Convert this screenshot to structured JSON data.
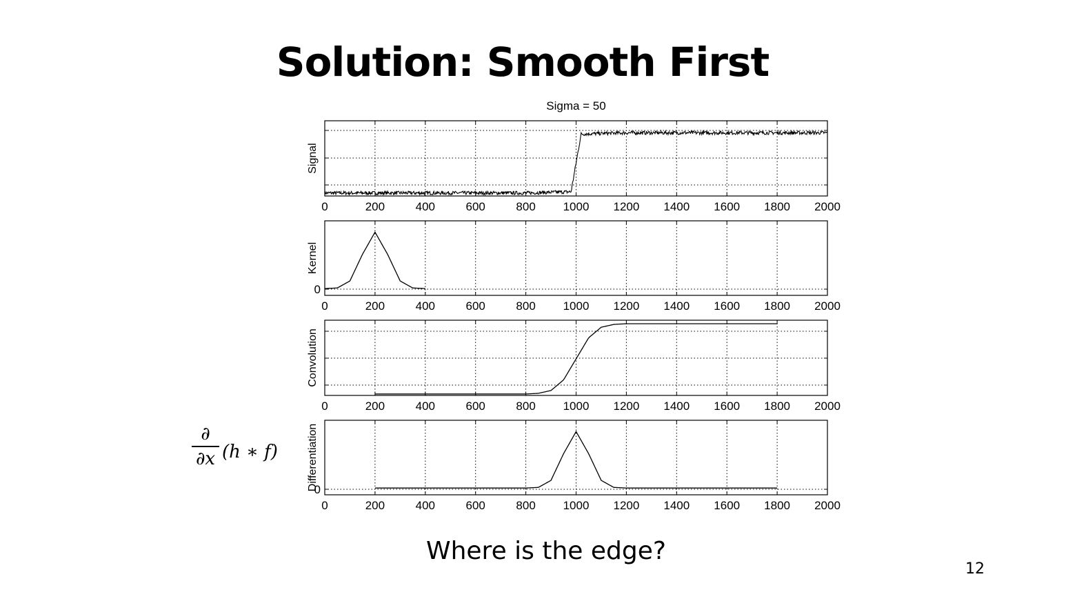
{
  "slide": {
    "title": "Solution:  Smooth First",
    "caption": "Where is the edge?",
    "page_number": "12",
    "formula": {
      "numerator": "∂",
      "denominator": "∂x",
      "expression": "(h ∗ f)"
    }
  },
  "chart_data": [
    {
      "type": "line",
      "title": "Sigma = 50",
      "ylabel": "Signal",
      "xlim": [
        0,
        2000
      ],
      "xticks": [
        "0",
        "200",
        "400",
        "600",
        "800",
        "1000",
        "1200",
        "1400",
        "1600",
        "1800",
        "2000"
      ],
      "yticks": [],
      "grid": true,
      "series": [
        {
          "description": "noisy step edge",
          "x": [
            0,
            200,
            400,
            600,
            800,
            980,
            1000,
            1020,
            1200,
            1400,
            1600,
            1800,
            2000
          ],
          "y": [
            0,
            0,
            0,
            0,
            0,
            0.02,
            0.5,
            0.98,
            1,
            1,
            1,
            1,
            1
          ],
          "noise_amplitude": 0.03
        }
      ],
      "ylim": [
        -0.05,
        1.2
      ]
    },
    {
      "type": "line",
      "ylabel": "Kernel",
      "xlim": [
        0,
        2000
      ],
      "xticks": [
        "0",
        "200",
        "400",
        "600",
        "800",
        "1000",
        "1200",
        "1400",
        "1600",
        "1800",
        "2000"
      ],
      "yticks": [
        "0"
      ],
      "grid": true,
      "series": [
        {
          "description": "Gaussian kernel, sigma 50, centered at 200",
          "x": [
            0,
            50,
            100,
            150,
            200,
            250,
            300,
            350,
            400
          ],
          "y": [
            0.0003,
            0.011,
            0.135,
            0.607,
            1,
            0.607,
            0.135,
            0.011,
            0.0003
          ]
        }
      ],
      "ylim": [
        -0.12,
        1.2
      ]
    },
    {
      "type": "line",
      "ylabel": "Convolution",
      "xlim": [
        0,
        2000
      ],
      "xticks": [
        "0",
        "200",
        "400",
        "600",
        "800",
        "1000",
        "1200",
        "1400",
        "1600",
        "1800",
        "2000"
      ],
      "yticks": [],
      "grid": true,
      "series": [
        {
          "description": "smoothed step",
          "x": [
            200,
            400,
            600,
            800,
            850,
            900,
            950,
            1000,
            1050,
            1100,
            1150,
            1200,
            1400,
            1600,
            1800
          ],
          "y": [
            0,
            0,
            0,
            0,
            0.01,
            0.05,
            0.2,
            0.5,
            0.8,
            0.95,
            0.99,
            1,
            1,
            1,
            1
          ]
        }
      ],
      "ylim": [
        -0.02,
        1.05
      ]
    },
    {
      "type": "line",
      "ylabel": "Differentiation",
      "xlim": [
        0,
        2000
      ],
      "xticks": [
        "0",
        "200",
        "400",
        "600",
        "800",
        "1000",
        "1200",
        "1400",
        "1600",
        "1800",
        "2000"
      ],
      "yticks": [
        "0"
      ],
      "grid": true,
      "series": [
        {
          "description": "derivative of smoothed signal, peak at 1000",
          "x": [
            200,
            400,
            600,
            800,
            850,
            900,
            950,
            1000,
            1050,
            1100,
            1150,
            1200,
            1400,
            1600,
            1800
          ],
          "y": [
            0,
            0,
            0,
            0,
            0.011,
            0.135,
            0.607,
            1,
            0.607,
            0.135,
            0.011,
            0,
            0,
            0,
            0
          ]
        }
      ],
      "ylim": [
        -0.12,
        1.2
      ]
    }
  ]
}
